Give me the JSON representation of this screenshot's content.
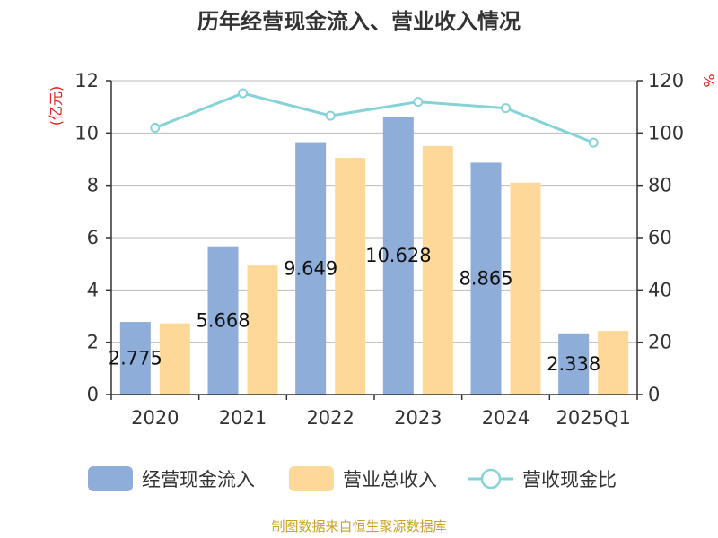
{
  "title": "历年经营现金流入、营业收入情况",
  "source": "制图数据来自恒生聚源数据库",
  "left_unit": "(亿元)",
  "right_unit": "%",
  "colors": {
    "inflow": "#8eadd9",
    "revenue": "#fed898",
    "ratio": "#86d3d7",
    "grid": "#bbbbbb",
    "axis": "#333333"
  },
  "chart_data": {
    "type": "bar",
    "categories": [
      "2020",
      "2021",
      "2022",
      "2023",
      "2024",
      "2025Q1"
    ],
    "series": [
      {
        "name": "经营现金流入",
        "axis": "left",
        "values": [
          2.775,
          5.668,
          9.649,
          10.628,
          8.865,
          2.338
        ]
      },
      {
        "name": "营业总收入",
        "axis": "left",
        "values": [
          2.72,
          4.93,
          9.05,
          9.5,
          8.1,
          2.43
        ]
      },
      {
        "name": "营收现金比",
        "axis": "right",
        "type": "line",
        "values": [
          102,
          115.2,
          106.6,
          111.9,
          109.5,
          96.3
        ]
      }
    ],
    "labels": [
      "2.775",
      "5.668",
      "9.649",
      "10.628",
      "8.865",
      "2.338"
    ],
    "ylim_left": [
      0,
      12
    ],
    "yticks_left": [
      0,
      2,
      4,
      6,
      8,
      10,
      12
    ],
    "ylim_right": [
      0,
      120
    ],
    "yticks_right": [
      0,
      20,
      40,
      60,
      80,
      100,
      120
    ],
    "grid": true,
    "legend_position": "bottom"
  }
}
